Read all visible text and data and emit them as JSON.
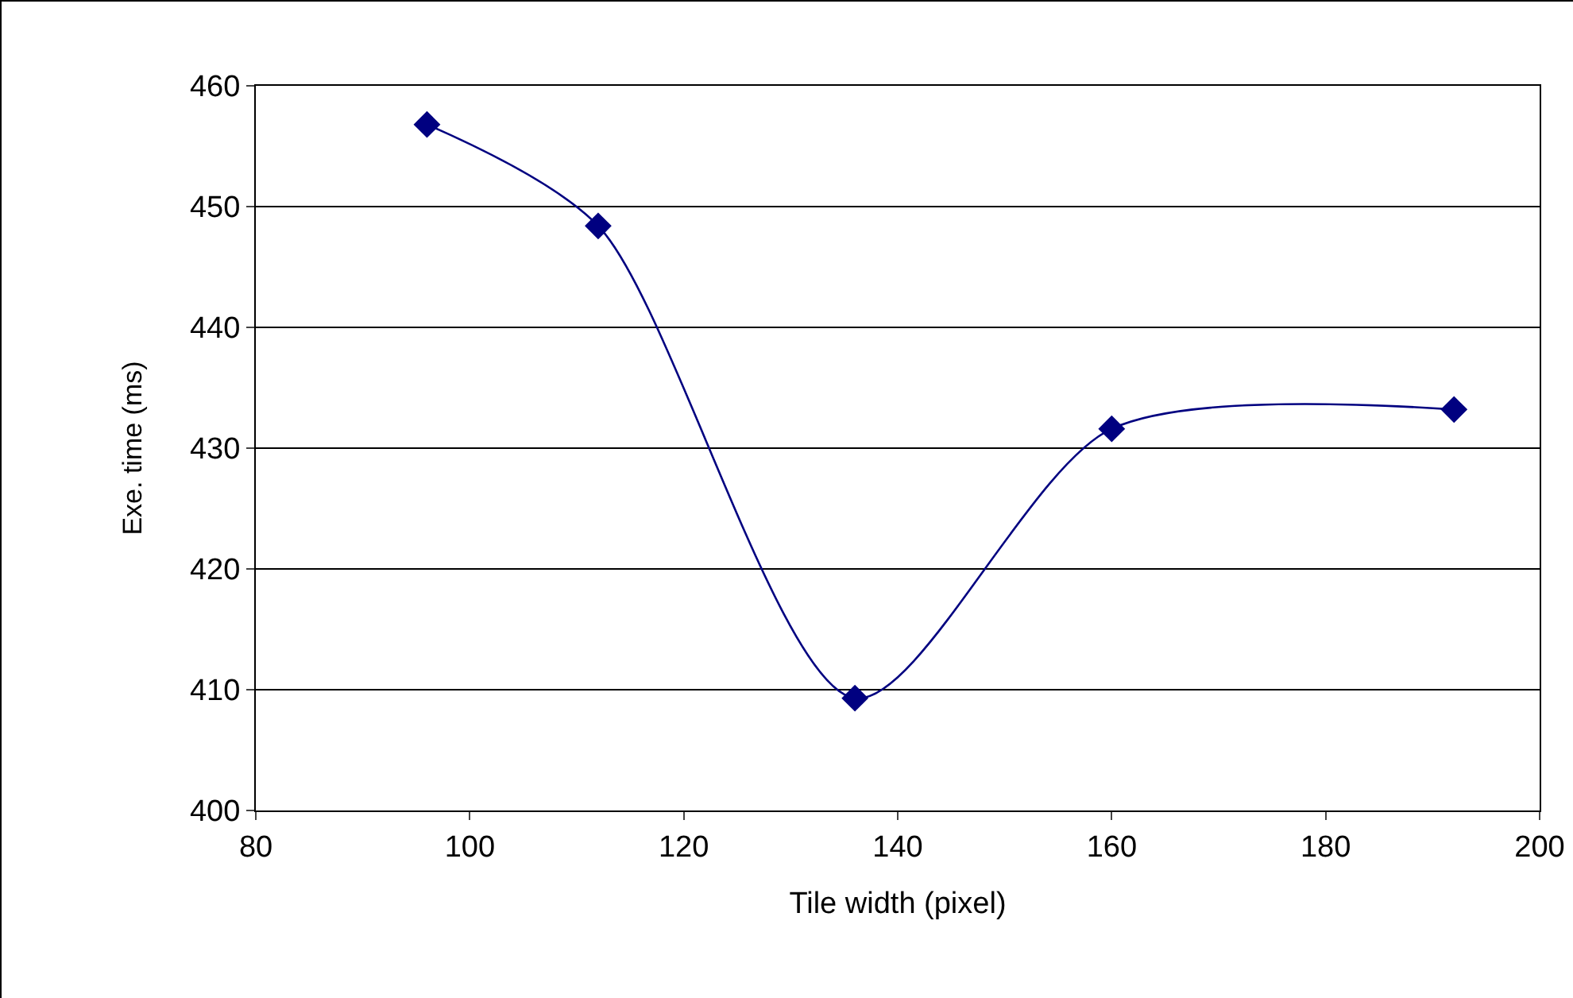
{
  "chart_data": {
    "type": "line",
    "xlabel": "Tile width (pixel)",
    "ylabel": "Exe. time (ms)",
    "x": [
      96,
      112,
      136,
      160,
      192
    ],
    "series": [
      {
        "color": "#000080",
        "values": [
          456.8,
          448.4,
          409.3,
          431.6,
          433.2
        ]
      }
    ],
    "xlim": [
      80,
      200
    ],
    "xticks": [
      80,
      100,
      120,
      140,
      160,
      180,
      200
    ],
    "ylim": [
      400,
      460
    ],
    "yticks": [
      400,
      410,
      420,
      430,
      440,
      450,
      460
    ],
    "grid": "y",
    "marker": "diamond",
    "line_style": "solid"
  }
}
